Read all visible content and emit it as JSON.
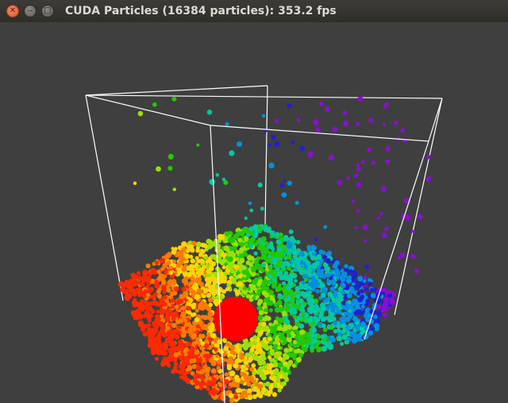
{
  "window": {
    "title": "CUDA Particles (16384 particles): 353.2 fps",
    "controls": {
      "close_icon": "close-icon",
      "minimize_icon": "minimize-icon",
      "maximize_icon": "maximize-icon"
    }
  },
  "scene": {
    "background_color": "#3f3f3f",
    "box_color": "#ffffff",
    "collider_sphere_color": "#ff0000",
    "particle_palette": [
      "#ff2a00",
      "#ff7a00",
      "#ffd500",
      "#9be000",
      "#22c800",
      "#00c8a0",
      "#0090e0",
      "#2020d0",
      "#8a10d0"
    ]
  }
}
